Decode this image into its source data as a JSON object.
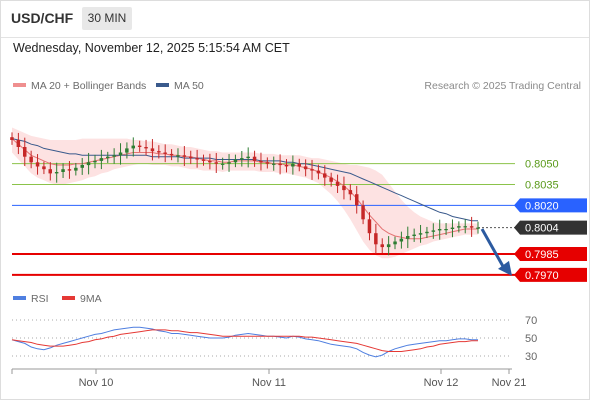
{
  "header": {
    "symbol": "USD/CHF",
    "timeframe": "30 MIN"
  },
  "timestamp": "Wednesday, November 12, 2025 5:15:54 AM CET",
  "legend": {
    "ma20_label": "MA 20 + Bollinger Bands",
    "ma50_label": "MA 50",
    "rsi_label": "RSI",
    "ma9_label": "9MA",
    "credit": "Research © 2025 Trading Central"
  },
  "colors": {
    "up": "#2e7d32",
    "down": "#c62828",
    "bollinger_band": "#fcd8d8",
    "ma20": "#e57373",
    "ma50": "#3a5a8c",
    "resistance_line": "#8bc34a",
    "pivot_line": "#2962ff",
    "support_line": "#e60000",
    "rsi": "#4f7fe0",
    "rsi_ma9": "#e53935",
    "current_price_label": "#333333"
  },
  "chart_data": {
    "type": "candlestick",
    "time_labels": [
      "Nov 10",
      "Nov 11",
      "Nov 12",
      "Nov 21"
    ],
    "price_range": [
      0.7962,
      0.8085
    ],
    "grid": false,
    "levels": [
      {
        "label": "0.8050",
        "kind": "resistance"
      },
      {
        "label": "0.8035",
        "kind": "resistance"
      },
      {
        "label": "0.8020",
        "kind": "pivot"
      },
      {
        "label": "0.8004",
        "kind": "current"
      },
      {
        "label": "0.7985",
        "kind": "support"
      },
      {
        "label": "0.7970",
        "kind": "support"
      }
    ],
    "forecast": {
      "direction": "down",
      "from_price": 0.8003,
      "to_price": 0.797
    },
    "close_series": [
      0.8067,
      0.8062,
      0.8055,
      0.8051,
      0.8048,
      0.8046,
      0.8043,
      0.8044,
      0.8046,
      0.8045,
      0.8047,
      0.8049,
      0.8051,
      0.8052,
      0.8054,
      0.8055,
      0.8056,
      0.8058,
      0.8061,
      0.8063,
      0.8062,
      0.8061,
      0.8059,
      0.8058,
      0.8057,
      0.8056,
      0.8056,
      0.8055,
      0.8054,
      0.8053,
      0.8052,
      0.8051,
      0.805,
      0.805,
      0.8051,
      0.8053,
      0.8054,
      0.8055,
      0.8052,
      0.8051,
      0.805,
      0.805,
      0.8049,
      0.8048,
      0.805,
      0.8048,
      0.8046,
      0.8045,
      0.8043,
      0.804,
      0.8037,
      0.8034,
      0.8031,
      0.8028,
      0.802,
      0.801,
      0.8,
      0.7992,
      0.799,
      0.7992,
      0.7994,
      0.7996,
      0.7998,
      0.7999,
      0.8,
      0.8001,
      0.8002,
      0.8003,
      0.8003,
      0.8004,
      0.8005,
      0.8005,
      0.8004,
      0.8004
    ],
    "ma20_series": [
      0.8068,
      0.8064,
      0.806,
      0.8056,
      0.8054,
      0.8052,
      0.805,
      0.8049,
      0.8049,
      0.8049,
      0.805,
      0.805,
      0.8051,
      0.8052,
      0.8053,
      0.8054,
      0.8055,
      0.8056,
      0.8057,
      0.8058,
      0.8058,
      0.8058,
      0.8058,
      0.8057,
      0.8057,
      0.8056,
      0.8056,
      0.8055,
      0.8055,
      0.8054,
      0.8053,
      0.8052,
      0.8052,
      0.8051,
      0.8051,
      0.8052,
      0.8052,
      0.8052,
      0.8052,
      0.8051,
      0.8051,
      0.805,
      0.805,
      0.8049,
      0.8049,
      0.8048,
      0.8047,
      0.8046,
      0.8044,
      0.8042,
      0.804,
      0.8037,
      0.8034,
      0.803,
      0.8025,
      0.8019,
      0.8013,
      0.8008,
      0.8003,
      0.8,
      0.7998,
      0.7997,
      0.7996,
      0.7996,
      0.7996,
      0.7997,
      0.7998,
      0.7999,
      0.8,
      0.8001,
      0.8002,
      0.8003,
      0.8003,
      0.8003
    ],
    "ma50_series": [
      0.8068,
      0.8067,
      0.8066,
      0.8064,
      0.8063,
      0.8061,
      0.806,
      0.8059,
      0.8058,
      0.8057,
      0.8057,
      0.8056,
      0.8056,
      0.8056,
      0.8056,
      0.8056,
      0.8056,
      0.8056,
      0.8056,
      0.8056,
      0.8056,
      0.8056,
      0.8055,
      0.8055,
      0.8055,
      0.8055,
      0.8055,
      0.8054,
      0.8054,
      0.8054,
      0.8054,
      0.8054,
      0.8053,
      0.8053,
      0.8053,
      0.8053,
      0.8053,
      0.8053,
      0.8053,
      0.8052,
      0.8052,
      0.8052,
      0.8052,
      0.8051,
      0.8051,
      0.805,
      0.805,
      0.8049,
      0.8048,
      0.8047,
      0.8046,
      0.8045,
      0.8044,
      0.8043,
      0.8041,
      0.8039,
      0.8037,
      0.8035,
      0.8033,
      0.8031,
      0.8029,
      0.8027,
      0.8025,
      0.8023,
      0.8021,
      0.8019,
      0.8017,
      0.8015,
      0.8014,
      0.8012,
      0.8011,
      0.801,
      0.8009,
      0.8009
    ],
    "bb_upper_series": [
      0.8076,
      0.8074,
      0.8072,
      0.807,
      0.8069,
      0.8068,
      0.8067,
      0.8067,
      0.8067,
      0.8067,
      0.8067,
      0.8068,
      0.8068,
      0.8068,
      0.8068,
      0.8068,
      0.8068,
      0.8068,
      0.8068,
      0.8067,
      0.8067,
      0.8066,
      0.8066,
      0.8065,
      0.8064,
      0.8064,
      0.8063,
      0.8062,
      0.8062,
      0.8061,
      0.806,
      0.8059,
      0.8059,
      0.8058,
      0.8058,
      0.8058,
      0.8058,
      0.8058,
      0.8058,
      0.8057,
      0.8057,
      0.8057,
      0.8056,
      0.8056,
      0.8056,
      0.8056,
      0.8055,
      0.8054,
      0.8054,
      0.8053,
      0.8052,
      0.8051,
      0.805,
      0.8049,
      0.8049,
      0.8048,
      0.8047,
      0.8045,
      0.8042,
      0.8036,
      0.803,
      0.8024,
      0.8019,
      0.8015,
      0.8012,
      0.801,
      0.8008,
      0.8007,
      0.8007,
      0.8007,
      0.8007,
      0.8007,
      0.8007,
      0.8007
    ],
    "bb_lower_series": [
      0.8058,
      0.8053,
      0.8048,
      0.8043,
      0.804,
      0.8038,
      0.8036,
      0.8035,
      0.8035,
      0.8036,
      0.8037,
      0.8038,
      0.804,
      0.8041,
      0.8043,
      0.8044,
      0.8046,
      0.8047,
      0.8048,
      0.8049,
      0.805,
      0.805,
      0.8049,
      0.8049,
      0.8049,
      0.8048,
      0.8048,
      0.8047,
      0.8046,
      0.8046,
      0.8045,
      0.8045,
      0.8045,
      0.8044,
      0.8045,
      0.8045,
      0.8045,
      0.8045,
      0.8045,
      0.8044,
      0.8044,
      0.8044,
      0.8043,
      0.8043,
      0.8042,
      0.8041,
      0.804,
      0.8038,
      0.8036,
      0.8032,
      0.8028,
      0.8023,
      0.8017,
      0.801,
      0.8002,
      0.7994,
      0.7988,
      0.7984,
      0.7982,
      0.7982,
      0.7983,
      0.7985,
      0.7987,
      0.7989,
      0.7991,
      0.7992,
      0.7994,
      0.7995,
      0.7996,
      0.7997,
      0.7998,
      0.7999,
      0.7999,
      0.7999
    ],
    "rsi": {
      "levels": [
        "70",
        "50",
        "30"
      ],
      "range": [
        20,
        80
      ],
      "rsi_series": [
        48,
        46,
        44,
        40,
        38,
        37,
        39,
        42,
        44,
        46,
        48,
        50,
        52,
        54,
        55,
        57,
        59,
        60,
        61,
        62,
        62,
        61,
        60,
        58,
        57,
        55,
        55,
        54,
        53,
        52,
        51,
        50,
        50,
        50,
        51,
        53,
        54,
        55,
        54,
        53,
        52,
        52,
        51,
        50,
        52,
        51,
        49,
        48,
        47,
        45,
        43,
        42,
        41,
        40,
        38,
        34,
        31,
        29,
        31,
        35,
        38,
        40,
        42,
        43,
        44,
        45,
        46,
        47,
        47,
        48,
        49,
        49,
        48,
        48
      ],
      "ma9_series": [
        48,
        47,
        46,
        45,
        43,
        42,
        41,
        41,
        41,
        42,
        43,
        45,
        46,
        48,
        49,
        51,
        52,
        54,
        55,
        56,
        57,
        58,
        59,
        59,
        59,
        58,
        58,
        57,
        56,
        56,
        55,
        54,
        53,
        52,
        52,
        52,
        52,
        52,
        52,
        52,
        52,
        52,
        52,
        52,
        52,
        52,
        51,
        51,
        50,
        49,
        48,
        47,
        46,
        45,
        44,
        42,
        40,
        38,
        36,
        35,
        35,
        35,
        36,
        37,
        38,
        40,
        41,
        43,
        44,
        45,
        46,
        46,
        47,
        47
      ]
    }
  }
}
